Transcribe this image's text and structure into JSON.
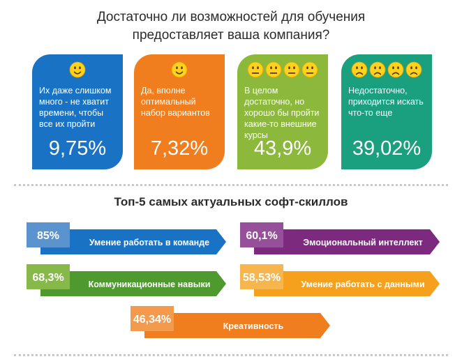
{
  "title_line1": "Достаточно ли возможностей для обучения",
  "title_line2": "предоставляет ваша компания?",
  "cards": [
    {
      "text": "Их даже слишком много - не хватит времени, чтобы все их пройти",
      "value": "9,75%",
      "color": "#1a72c4",
      "faces": 1,
      "mood": "smile"
    },
    {
      "text": "Да, вполне оптимальный набор вариантов",
      "value": "7,32%",
      "color": "#f07e1e",
      "faces": 1,
      "mood": "smile"
    },
    {
      "text": "В целом достаточно, но хорошо бы пройти какие-то внешние курсы",
      "value": "43,9%",
      "color": "#8cb83c",
      "faces": 4,
      "mood": "neutral"
    },
    {
      "text": "Недостаточно, приходится искать что-то еще",
      "value": "39,02%",
      "color": "#1aa07e",
      "faces": 4,
      "mood": "sad"
    }
  ],
  "subtitle": "Топ-5 самых актуальных софт-скиллов",
  "chart_data": {
    "type": "bar",
    "title": "Топ-5 самых актуальных софт-скиллов",
    "categories": [
      "Умение работать в команде",
      "Коммуникационные навыки",
      "Креативность",
      "Эмоциональный интеллект",
      "Умение работать с данными"
    ],
    "values": [
      85,
      68.3,
      46.34,
      60.1,
      58.53
    ],
    "value_labels": [
      "85%",
      "68,3%",
      "46,34%",
      "60,1%",
      "58,53%"
    ],
    "colors": {
      "bar": [
        "#1a72c4",
        "#4e9a2e",
        "#f07e1e",
        "#7b2a7d",
        "#f5a11e"
      ],
      "box": [
        "#5b93cf",
        "#86b94a",
        "#f39a4c",
        "#96509a",
        "#f6b54d"
      ]
    }
  }
}
